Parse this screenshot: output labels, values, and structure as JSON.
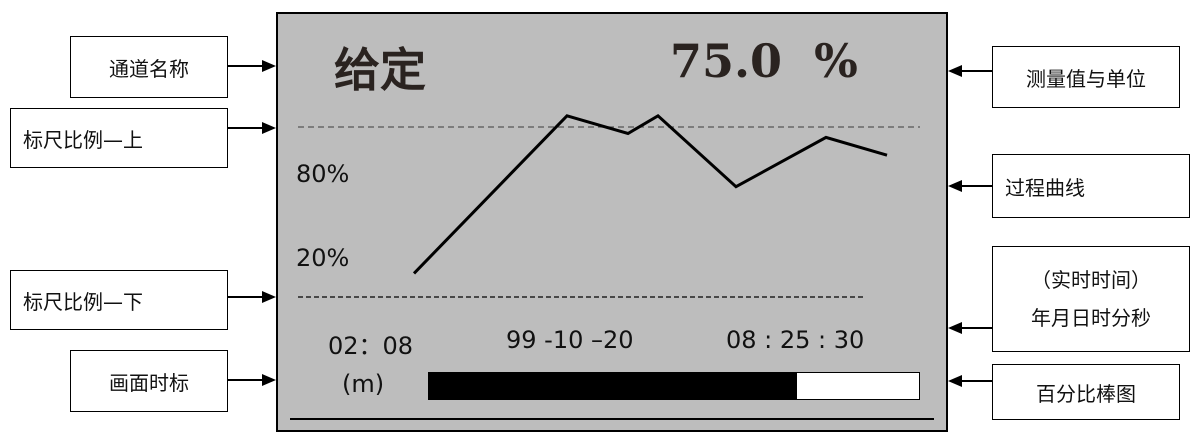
{
  "labels": {
    "channel_name": "通道名称",
    "scale_upper": "标尺比例—上",
    "scale_lower": "标尺比例—下",
    "screen_time": "画面时标",
    "measurement_unit": "测量值与单位",
    "process_curve": "过程曲线",
    "realtime_line1": "（实时时间）",
    "realtime_line2": "年月日时分秒",
    "percent_bar": "百分比棒图"
  },
  "screen": {
    "channel": "给定",
    "value": "75.0",
    "unit": "%",
    "scale_upper": "80%",
    "scale_lower": "20%",
    "time_span": "02：08",
    "time_unit": "(m)",
    "date": "99 -10 –20",
    "clock": "08 : 25 : 30",
    "bar_fraction": 0.75
  },
  "chart_data": {
    "type": "line",
    "series": [
      {
        "values": [
          12,
          92,
          83,
          92,
          56,
          81,
          72
        ]
      }
    ],
    "ylim": [
      0,
      100
    ],
    "y_ticks": [
      "20%",
      "80%"
    ]
  },
  "colors": {
    "screen_bg": "#bdbdbd",
    "ink": "#000000",
    "title_ink": "#2a2320"
  }
}
